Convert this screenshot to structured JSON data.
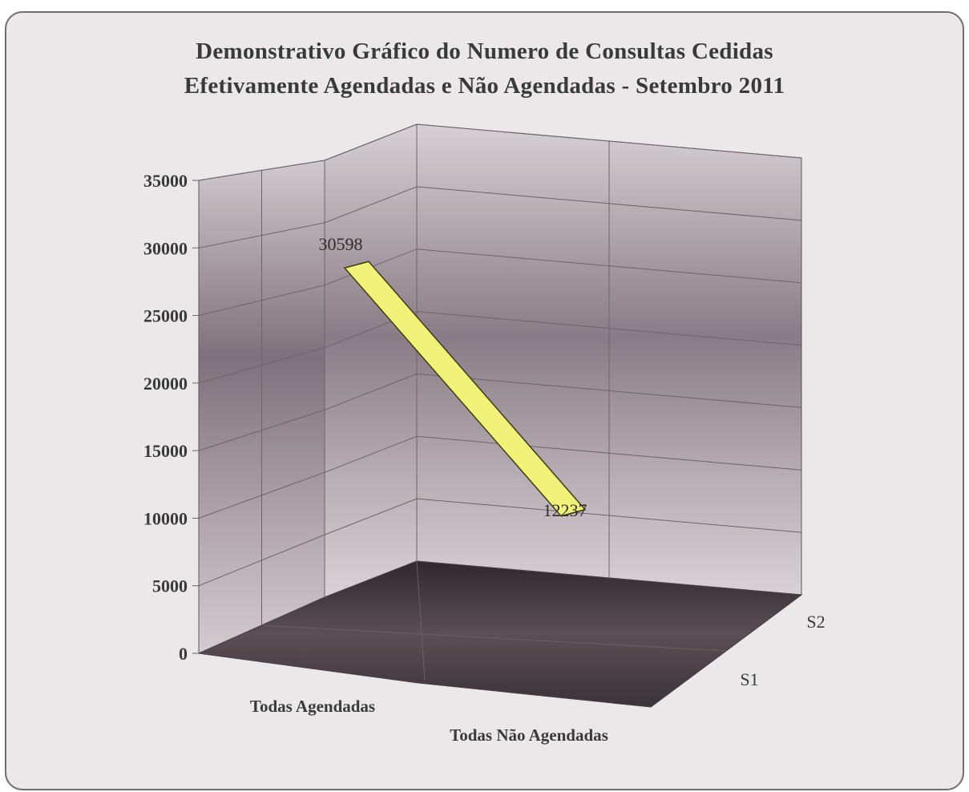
{
  "chart_data": {
    "type": "line",
    "title_lines": [
      "Demonstrativo Gráfico do Numero de Consultas Cedidas",
      "Efetivamente Agendadas e Não Agendadas - Setembro 2011"
    ],
    "categories": [
      "Todas Agendadas",
      "Todas Não Agendadas"
    ],
    "depth_labels": [
      "S1",
      "S2"
    ],
    "series": [
      {
        "values": [
          30598,
          12237
        ]
      }
    ],
    "data_labels": [
      "30598",
      "12237"
    ],
    "ylim": [
      0,
      35000
    ],
    "y_ticks": [
      0,
      5000,
      10000,
      15000,
      20000,
      25000,
      30000,
      35000
    ],
    "y_tick_labels": [
      "0",
      "5000",
      "10000",
      "15000",
      "20000",
      "25000",
      "30000",
      "35000"
    ],
    "three_d": true,
    "grid": true,
    "legend": "none",
    "colors": {
      "ribbon": "#f2f27a",
      "ribbon_edge": "#3c3c14",
      "wall": "#9c8f98",
      "floor": "#4c4248",
      "text": "#3a3a3a",
      "background": "#ece8ea"
    }
  }
}
